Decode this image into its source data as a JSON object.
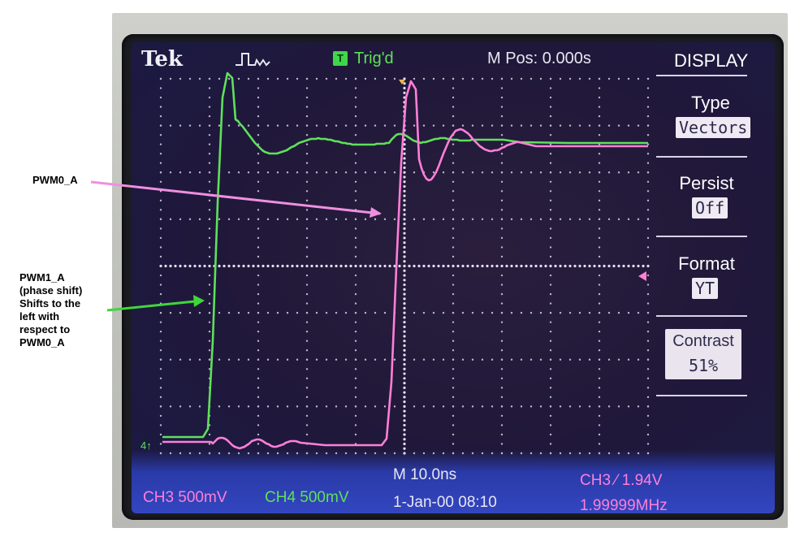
{
  "annotations": {
    "pwm0": "PWM0_A",
    "pwm1_lines": [
      "PWM1_A",
      "(phase shift)",
      "Shifts to the",
      "left with",
      "respect to",
      "PWM0_A"
    ]
  },
  "scope": {
    "brand": "Tek",
    "trigger_icon": "T",
    "trigger_status": "Trig'd",
    "m_pos": "M Pos: 0.000s",
    "menu": {
      "title": "DISPLAY",
      "type_label": "Type",
      "type_value": "Vectors",
      "persist_label": "Persist",
      "persist_value": "Off",
      "format_label": "Format",
      "format_value": "YT",
      "contrast_label": "Contrast",
      "contrast_value": "51%"
    },
    "ground_marker": "4↑",
    "readout": {
      "ch3": "CH3  500mV",
      "ch4": "CH4  500mV",
      "timebase": "M 10.0ns",
      "datetime": "1-Jan-00 08:10",
      "trigger": "CH3 ⁄ 1.94V",
      "frequency": "1.99999MHz"
    }
  },
  "colors": {
    "ch3_trace": "#ff7fd8",
    "ch4_trace": "#5fe05a",
    "arrow_pink": "#f08fe0",
    "arrow_green": "#3fd63a"
  }
}
